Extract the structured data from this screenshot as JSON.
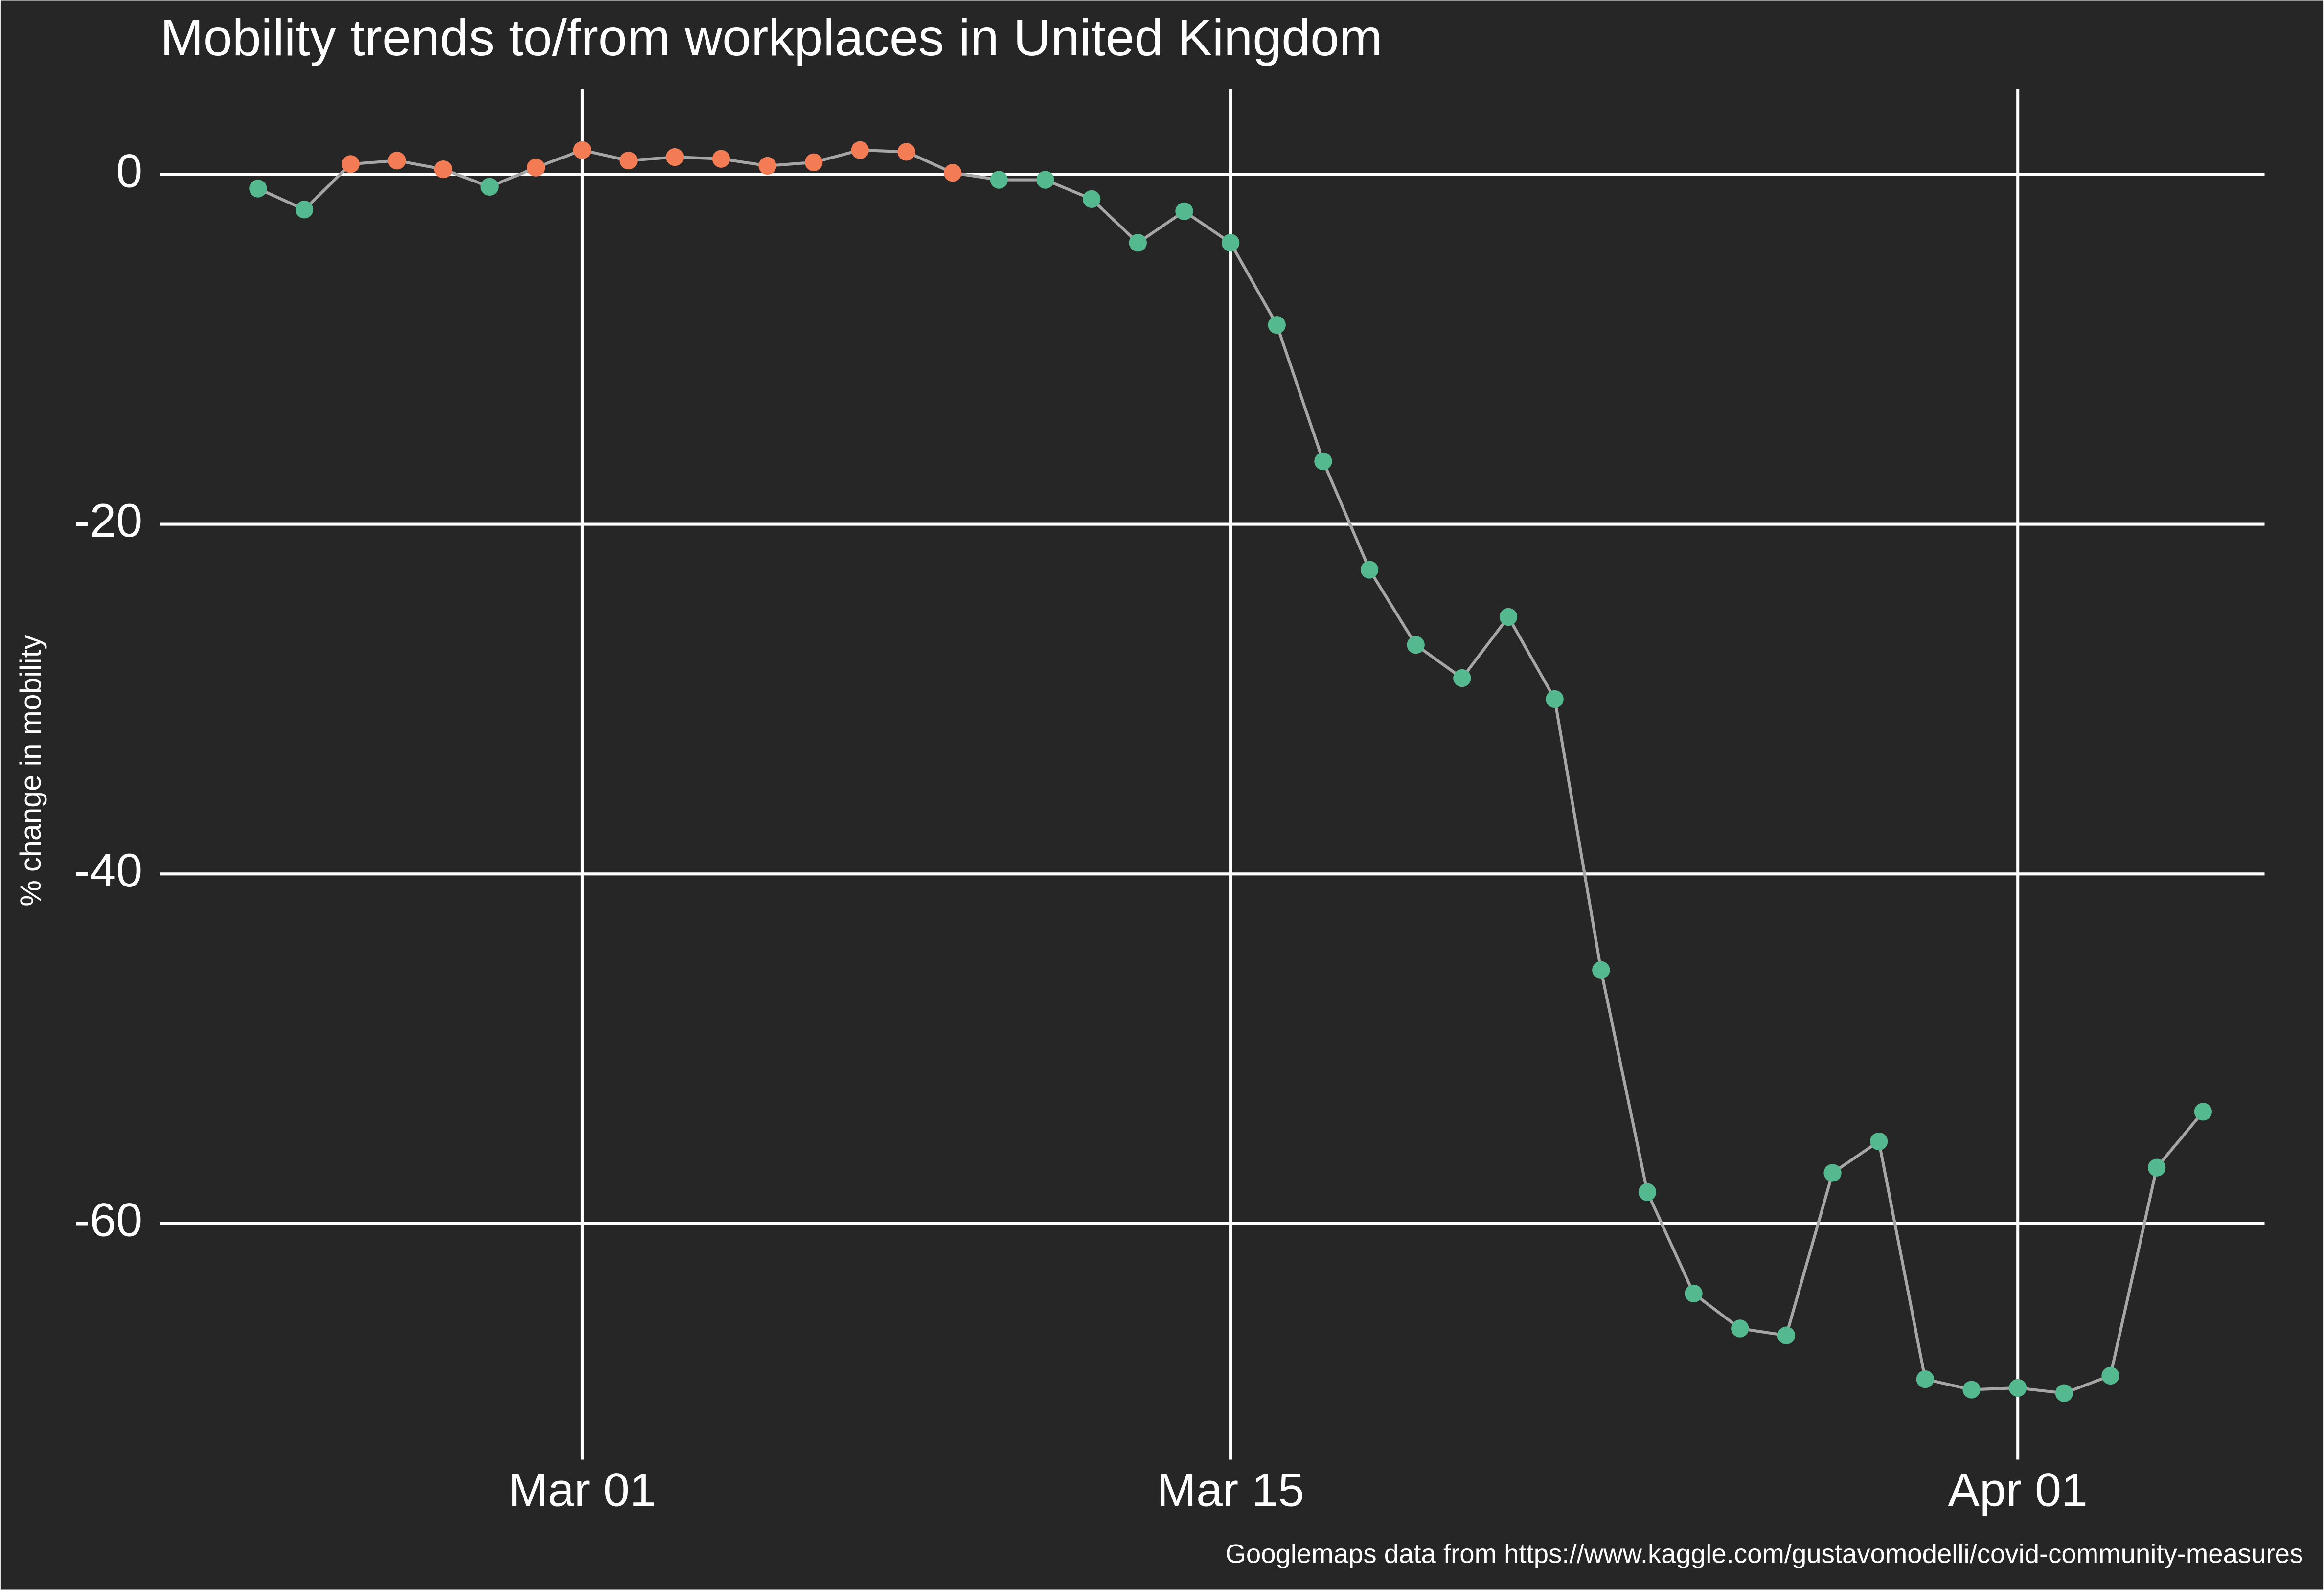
{
  "chart_data": {
    "type": "line",
    "title": "Mobility trends to/from workplaces in United Kingdom",
    "y_label": "% change in mobility",
    "caption": "Googlemaps data from https://www.kaggle.com/gustavomodelli/covid-community-measures",
    "x": [
      "Feb 23",
      "Feb 24",
      "Feb 25",
      "Feb 26",
      "Feb 27",
      "Feb 28",
      "Feb 29",
      "Mar 01",
      "Mar 02",
      "Mar 03",
      "Mar 04",
      "Mar 05",
      "Mar 06",
      "Mar 07",
      "Mar 08",
      "Mar 09",
      "Mar 10",
      "Mar 11",
      "Mar 12",
      "Mar 13",
      "Mar 14",
      "Mar 15",
      "Mar 16",
      "Mar 17",
      "Mar 18",
      "Mar 19",
      "Mar 20",
      "Mar 21",
      "Mar 22",
      "Mar 23",
      "Mar 24",
      "Mar 25",
      "Mar 26",
      "Mar 27",
      "Mar 28",
      "Mar 29",
      "Mar 30",
      "Mar 31",
      "Apr 01",
      "Apr 02",
      "Apr 03",
      "Apr 04",
      "Apr 05"
    ],
    "series": [
      {
        "name": "workplaces",
        "color": "#a6a6a6",
        "values": [
          -0.8,
          -2.0,
          0.6,
          0.8,
          0.3,
          -0.7,
          0.4,
          1.4,
          0.8,
          1.0,
          0.9,
          0.5,
          0.7,
          1.4,
          1.3,
          0.1,
          -0.3,
          -0.3,
          -1.4,
          -3.9,
          -2.1,
          -3.9,
          -8.6,
          -16.4,
          -22.6,
          -26.9,
          -28.8,
          -25.3,
          -30.0,
          -45.5,
          -58.2,
          -64.0,
          -66.0,
          -66.4,
          -57.1,
          -55.3,
          -68.9,
          -69.5,
          -69.4,
          -69.7,
          -68.7,
          -56.8,
          -53.6
        ]
      }
    ],
    "point_colors": {
      "above_zero": "#f47c55",
      "at_or_below_zero": "#55b990"
    },
    "xticks": [
      "Mar 01",
      "Mar 15",
      "Apr 01"
    ],
    "ylim": [
      -73.5,
      4.9
    ],
    "yticks": [
      0,
      -20,
      -40,
      -60
    ],
    "grid": true
  }
}
